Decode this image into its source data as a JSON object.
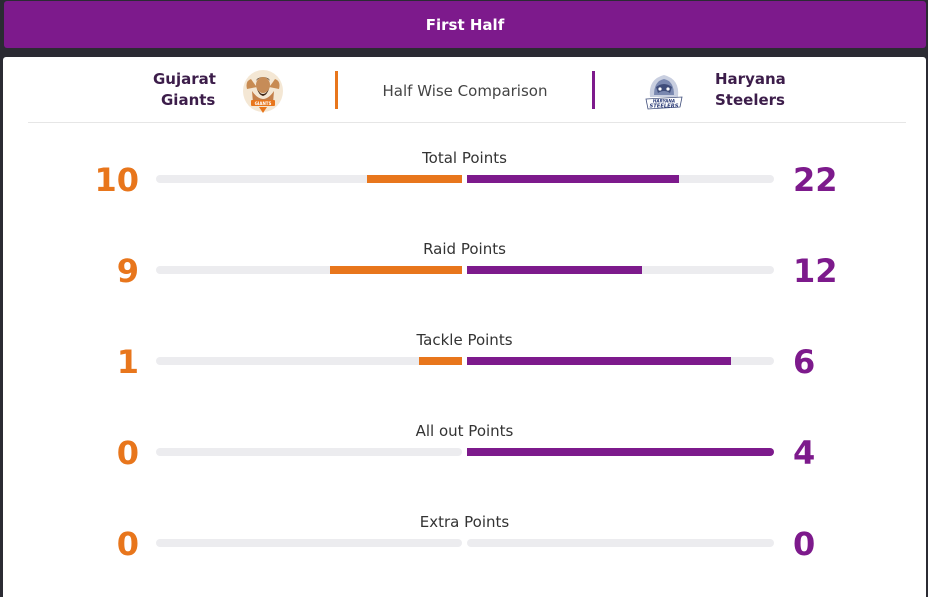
{
  "tab": {
    "label": "First Half"
  },
  "header": {
    "left_team": {
      "name_line1": "Gujarat",
      "name_line2": "Giants",
      "logo_icon": "gujarat-giants-logo-icon",
      "logo_text": "GIANTS"
    },
    "right_team": {
      "name_line1": "Haryana",
      "name_line2": "Steelers",
      "logo_icon": "haryana-steelers-logo-icon",
      "logo_text": "HARYANA STEELERS"
    },
    "title": "Half Wise Comparison"
  },
  "colors": {
    "left_team": "#e8761c",
    "right_team": "#7d1a8c",
    "track": "#ececef"
  },
  "stats": [
    {
      "label": "Total Points",
      "left": "10",
      "right": "22",
      "left_fill": 0.31,
      "right_fill": 0.69
    },
    {
      "label": "Raid Points",
      "left": "9",
      "right": "12",
      "left_fill": 0.43,
      "right_fill": 0.57
    },
    {
      "label": "Tackle Points",
      "left": "1",
      "right": "6",
      "left_fill": 0.14,
      "right_fill": 0.86
    },
    {
      "label": "All out Points",
      "left": "0",
      "right": "4",
      "left_fill": 0,
      "right_fill": 1
    },
    {
      "label": "Extra Points",
      "left": "0",
      "right": "0",
      "left_fill": 0,
      "right_fill": 0
    }
  ]
}
